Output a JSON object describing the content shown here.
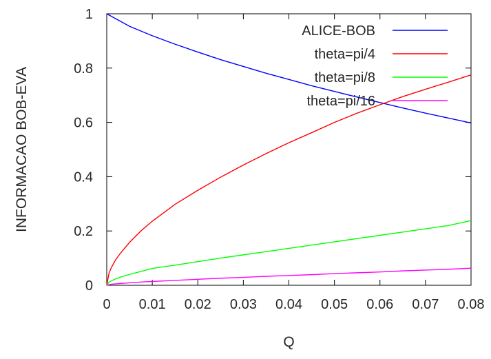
{
  "chart_data": {
    "type": "line",
    "title": "",
    "xlabel": "Q",
    "ylabel": "INFORMACAO BOB-EVA",
    "xlim": [
      0,
      0.08
    ],
    "ylim": [
      0,
      1
    ],
    "xticks": [
      0,
      0.01,
      0.02,
      0.03,
      0.04,
      0.05,
      0.06,
      0.07,
      0.08
    ],
    "xtick_labels": [
      "0",
      "0.01",
      "0.02",
      "0.03",
      "0.04",
      "0.05",
      "0.06",
      "0.07",
      "0.08"
    ],
    "yticks": [
      0,
      0.2,
      0.4,
      0.6,
      0.8,
      1
    ],
    "ytick_labels": [
      "0",
      "0.2",
      "0.4",
      "0.6",
      "0.8",
      "1"
    ],
    "grid": false,
    "legend": "top-right",
    "series": [
      {
        "name": "ALICE-BOB",
        "color": "#0000ff",
        "x": [
          0,
          0.005,
          0.01,
          0.015,
          0.02,
          0.025,
          0.03,
          0.035,
          0.04,
          0.045,
          0.05,
          0.055,
          0.06,
          0.065,
          0.07,
          0.075,
          0.08
        ],
        "y": [
          1.0,
          0.954,
          0.919,
          0.888,
          0.859,
          0.831,
          0.806,
          0.781,
          0.758,
          0.735,
          0.714,
          0.693,
          0.673,
          0.653,
          0.634,
          0.616,
          0.598
        ]
      },
      {
        "name": "theta=pi/4",
        "color": "#ff0000",
        "x": [
          0,
          0.0005,
          0.001,
          0.002,
          0.003,
          0.005,
          0.0075,
          0.01,
          0.015,
          0.02,
          0.025,
          0.03,
          0.035,
          0.04,
          0.045,
          0.05,
          0.055,
          0.06,
          0.065,
          0.07,
          0.075,
          0.08
        ],
        "y": [
          0,
          0.045,
          0.065,
          0.095,
          0.118,
          0.158,
          0.2,
          0.236,
          0.298,
          0.35,
          0.398,
          0.443,
          0.485,
          0.525,
          0.562,
          0.6,
          0.634,
          0.665,
          0.695,
          0.722,
          0.748,
          0.775
        ]
      },
      {
        "name": "theta=pi/8",
        "color": "#00ff00",
        "x": [
          0,
          0.0005,
          0.001,
          0.002,
          0.003,
          0.005,
          0.0075,
          0.01,
          0.015,
          0.02,
          0.025,
          0.03,
          0.035,
          0.04,
          0.045,
          0.05,
          0.055,
          0.06,
          0.065,
          0.07,
          0.075,
          0.08
        ],
        "y": [
          0,
          0.011,
          0.016,
          0.024,
          0.03,
          0.04,
          0.051,
          0.062,
          0.074,
          0.087,
          0.1,
          0.112,
          0.124,
          0.136,
          0.148,
          0.16,
          0.172,
          0.184,
          0.196,
          0.208,
          0.22,
          0.238
        ]
      },
      {
        "name": "theta=pi/16",
        "color": "#ff00ff",
        "x": [
          0,
          0.001,
          0.0025,
          0.005,
          0.0075,
          0.01,
          0.015,
          0.02,
          0.025,
          0.03,
          0.035,
          0.04,
          0.045,
          0.05,
          0.055,
          0.06,
          0.065,
          0.07,
          0.075,
          0.08
        ],
        "y": [
          0,
          0.004,
          0.006,
          0.009,
          0.012,
          0.014,
          0.018,
          0.022,
          0.026,
          0.029,
          0.033,
          0.036,
          0.039,
          0.043,
          0.046,
          0.049,
          0.053,
          0.056,
          0.059,
          0.063
        ]
      }
    ]
  }
}
